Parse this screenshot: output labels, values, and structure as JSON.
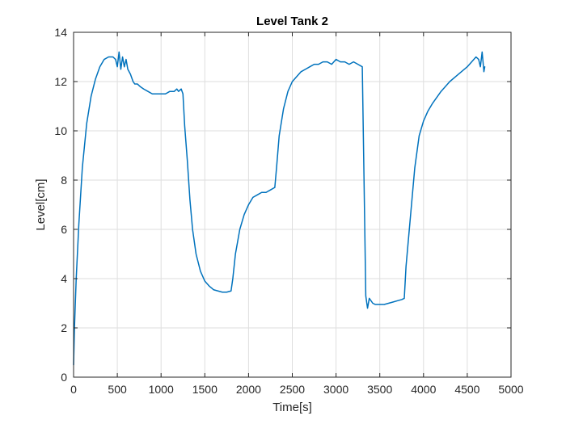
{
  "chart_data": {
    "type": "line",
    "title": "Level Tank 2",
    "xlabel": "Time[s]",
    "ylabel": "Level[cm]",
    "xlim": [
      0,
      5000
    ],
    "ylim": [
      0,
      14
    ],
    "xticks": [
      0,
      500,
      1000,
      1500,
      2000,
      2500,
      3000,
      3500,
      4000,
      4500,
      5000
    ],
    "yticks": [
      0,
      2,
      4,
      6,
      8,
      10,
      12,
      14
    ],
    "grid": true,
    "legend": "none",
    "colors": {
      "line": "#0072BD",
      "grid": "#dedede",
      "axis": "#262626"
    },
    "series": [
      {
        "x": [
          0,
          10,
          30,
          60,
          100,
          150,
          200,
          250,
          300,
          350,
          400,
          450,
          480,
          500,
          520,
          540,
          560,
          580,
          600,
          620,
          650,
          680,
          700,
          730,
          760,
          800,
          850,
          900,
          950,
          1000,
          1050,
          1100,
          1150,
          1180,
          1200,
          1230,
          1250,
          1270,
          1300,
          1330,
          1360,
          1400,
          1450,
          1500,
          1550,
          1600,
          1650,
          1700,
          1750,
          1800,
          1820,
          1850,
          1900,
          1950,
          2000,
          2050,
          2100,
          2150,
          2200,
          2250,
          2300,
          2320,
          2350,
          2400,
          2450,
          2500,
          2550,
          2600,
          2650,
          2700,
          2750,
          2800,
          2850,
          2900,
          2950,
          3000,
          3050,
          3100,
          3150,
          3200,
          3250,
          3300,
          3320,
          3340,
          3360,
          3380,
          3400,
          3420,
          3450,
          3500,
          3550,
          3600,
          3650,
          3700,
          3750,
          3780,
          3800,
          3850,
          3900,
          3950,
          4000,
          4050,
          4100,
          4200,
          4300,
          4400,
          4500,
          4550,
          4600,
          4630,
          4650,
          4670,
          4690,
          4700
        ],
        "y": [
          0.5,
          2.0,
          4.0,
          6.2,
          8.5,
          10.3,
          11.4,
          12.1,
          12.6,
          12.9,
          13.0,
          13.0,
          12.9,
          12.6,
          13.2,
          12.5,
          13.0,
          12.6,
          12.9,
          12.5,
          12.3,
          12.0,
          11.9,
          11.9,
          11.8,
          11.7,
          11.6,
          11.5,
          11.5,
          11.5,
          11.5,
          11.6,
          11.6,
          11.7,
          11.6,
          11.7,
          11.5,
          10.2,
          8.8,
          7.2,
          6.0,
          5.0,
          4.3,
          3.9,
          3.7,
          3.55,
          3.5,
          3.45,
          3.45,
          3.5,
          4.0,
          5.0,
          6.0,
          6.6,
          7.0,
          7.3,
          7.4,
          7.5,
          7.5,
          7.6,
          7.7,
          8.5,
          9.8,
          10.9,
          11.6,
          12.0,
          12.2,
          12.4,
          12.5,
          12.6,
          12.7,
          12.7,
          12.8,
          12.8,
          12.7,
          12.9,
          12.8,
          12.8,
          12.7,
          12.8,
          12.7,
          12.6,
          8.0,
          3.3,
          2.8,
          3.2,
          3.1,
          3.0,
          2.95,
          2.95,
          2.95,
          3.0,
          3.05,
          3.1,
          3.15,
          3.2,
          4.5,
          6.5,
          8.5,
          9.8,
          10.4,
          10.8,
          11.1,
          11.6,
          12.0,
          12.3,
          12.6,
          12.8,
          13.0,
          12.9,
          12.6,
          13.2,
          12.4,
          12.6
        ]
      }
    ]
  }
}
